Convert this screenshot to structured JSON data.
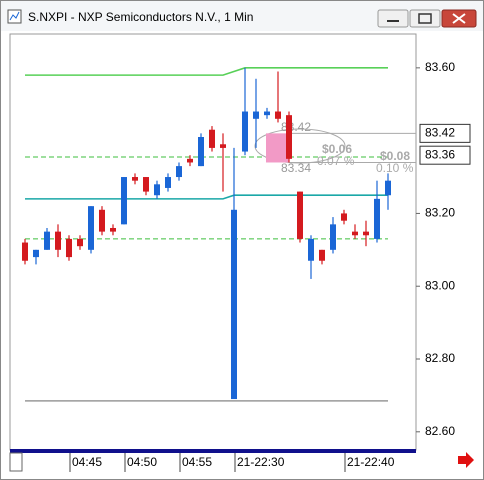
{
  "chart_data": {
    "type": "candlestick",
    "title": "S.NXPI - NXP Semiconductors N.V., 1 Min",
    "categories": [
      null,
      null,
      null,
      null,
      "04:45",
      null,
      null,
      null,
      null,
      "04:50",
      null,
      null,
      null,
      null,
      "04:55",
      null,
      null,
      null,
      null,
      "21-22:30",
      null,
      null,
      null,
      null,
      null,
      null,
      null,
      null,
      null,
      "21-22:40",
      null,
      null,
      null,
      null
    ],
    "open": [
      83.12,
      83.08,
      83.1,
      83.15,
      83.13,
      83.13,
      83.1,
      83.21,
      83.16,
      83.17,
      83.3,
      83.3,
      83.25,
      83.27,
      83.3,
      83.35,
      83.33,
      83.43,
      83.39,
      82.69,
      83.37,
      83.46,
      83.47,
      83.48,
      83.47,
      83.26,
      83.07,
      83.1,
      83.1,
      83.2,
      83.15,
      83.15,
      83.13,
      83.25
    ],
    "close": [
      83.07,
      83.1,
      83.15,
      83.1,
      83.08,
      83.11,
      83.22,
      83.15,
      83.15,
      83.3,
      83.29,
      83.26,
      83.28,
      83.3,
      83.33,
      83.34,
      83.41,
      83.38,
      83.38,
      83.21,
      83.48,
      83.48,
      83.48,
      83.46,
      83.35,
      83.13,
      83.13,
      83.07,
      83.17,
      83.18,
      83.14,
      83.14,
      83.24,
      83.29
    ],
    "high": [
      83.13,
      83.1,
      83.16,
      83.17,
      83.14,
      83.14,
      83.22,
      83.22,
      83.17,
      83.3,
      83.31,
      83.3,
      83.29,
      83.31,
      83.34,
      83.36,
      83.42,
      83.44,
      83.42,
      83.38,
      83.6,
      83.57,
      83.49,
      83.59,
      83.48,
      83.26,
      83.14,
      83.1,
      83.19,
      83.21,
      83.17,
      83.18,
      83.29,
      83.31
    ],
    "low": [
      83.06,
      83.06,
      83.1,
      83.08,
      83.07,
      83.1,
      83.09,
      83.14,
      83.14,
      83.17,
      83.28,
      83.25,
      83.24,
      83.26,
      83.29,
      83.33,
      83.33,
      83.37,
      83.26,
      82.69,
      83.36,
      83.38,
      83.46,
      83.45,
      83.34,
      83.12,
      83.02,
      83.06,
      83.09,
      83.17,
      83.13,
      83.11,
      83.12,
      83.21
    ],
    "up_color": "#1a66d6",
    "down_color": "#d41a1f",
    "ylim": [
      82.55,
      83.693
    ],
    "yticks": [
      {
        "value": 82.6,
        "label": "82.60"
      },
      {
        "value": 82.8,
        "label": "82.80"
      },
      {
        "value": 83.0,
        "label": "83.00"
      },
      {
        "value": 83.2,
        "label": "83.20"
      },
      {
        "value": 83.6,
        "label": "83.60"
      }
    ],
    "price_markers": [
      83.42,
      83.36
    ],
    "overlays": [
      {
        "color": "#58d058",
        "dash": false,
        "x": [
          0,
          18,
          20,
          33
        ],
        "values": [
          83.58,
          83.58,
          83.6,
          83.6
        ]
      },
      {
        "color": "#3cbf3c",
        "dash": true,
        "x": [
          0,
          33
        ],
        "values": [
          83.355,
          83.355
        ]
      },
      {
        "color": "#1aa8a8",
        "dash": false,
        "x": [
          0,
          18,
          19,
          33
        ],
        "values": [
          83.24,
          83.24,
          83.25,
          83.25
        ]
      },
      {
        "color": "#3cbf3c",
        "dash": true,
        "x": [
          0,
          18,
          19,
          33
        ],
        "values": [
          83.13,
          83.13,
          83.13,
          83.13
        ]
      },
      {
        "color": "#999999",
        "dash": false,
        "x": [
          0,
          33
        ],
        "values": [
          82.685,
          82.685
        ]
      }
    ],
    "measure": {
      "from": 83.42,
      "to": 83.34,
      "labels": [
        "83.42",
        "83.34",
        "$0.06",
        "0.07 %",
        "$0.08",
        "0.10 %"
      ]
    }
  }
}
